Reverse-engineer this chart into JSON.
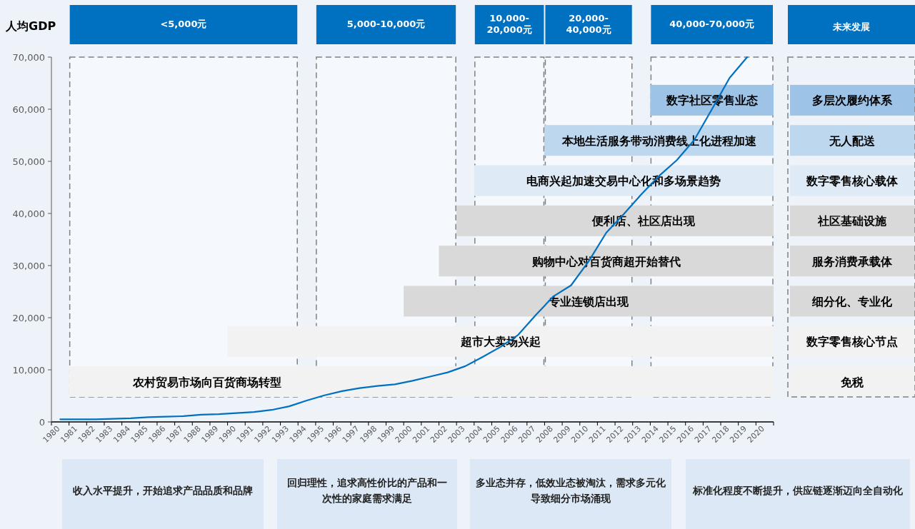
{
  "chart_data": {
    "type": "line",
    "ylabel": "人均GDP",
    "categories": [
      "1980",
      "1981",
      "1982",
      "1983",
      "1984",
      "1985",
      "1986",
      "1987",
      "1988",
      "1989",
      "1990",
      "1991",
      "1992",
      "1993",
      "1994",
      "1995",
      "1996",
      "1997",
      "1998",
      "1999",
      "2000",
      "2001",
      "2002",
      "2003",
      "2004",
      "2005",
      "2006",
      "2007",
      "2008",
      "2009",
      "2010",
      "2011",
      "2012",
      "2013",
      "2014",
      "2015",
      "2016",
      "2017",
      "2018",
      "2019",
      "2020"
    ],
    "series": [
      {
        "color": "#0070c0",
        "values": [
          500,
          500,
          500,
          600,
          700,
          900,
          1000,
          1100,
          1400,
          1500,
          1700,
          1900,
          2300,
          3000,
          4100,
          5100,
          5900,
          6500,
          6900,
          7200,
          7900,
          8700,
          9500,
          10700,
          12500,
          14400,
          16700,
          20500,
          24100,
          26200,
          30800,
          36300,
          39900,
          43700,
          47200,
          50200,
          54100,
          60000,
          66000,
          70000,
          null
        ]
      }
    ],
    "ylim": [
      0,
      70000
    ],
    "yticks": [
      0,
      {
        "value": 10000,
        "label": "10,000"
      },
      {
        "value": 20000,
        "label": "20,000"
      },
      {
        "value": 30000,
        "label": "30,000"
      },
      {
        "value": 40000,
        "label": "40,000"
      },
      {
        "value": 50000,
        "label": "50,000"
      },
      {
        "value": 60000,
        "label": "60,000"
      },
      {
        "value": 70000,
        "label": "70,000"
      }
    ],
    "grid": false,
    "marker": "none",
    "line_style": "solid",
    "bands": [
      {
        "axis": "x",
        "from": "1981",
        "to": "1993",
        "label": "<5,000元",
        "color": "#f5f8fd"
      },
      {
        "axis": "x",
        "from": "1995",
        "to": "2002",
        "label": "5,000-10,000元",
        "color": "#f5f8fd"
      },
      {
        "axis": "x",
        "from": "2004",
        "to": "2007",
        "label": "10,000-\n20,000元",
        "color": "#f5f8fd"
      },
      {
        "axis": "x",
        "from": "2008",
        "to": "2012",
        "label": "20,000-\n40,000元",
        "color": "#f5f8fd"
      },
      {
        "axis": "x",
        "from": "2014",
        "to": "2020",
        "label": "40,000-70,000元",
        "color": "#f5f8fd"
      },
      {
        "axis": "x",
        "from": "2014",
        "to": "2020",
        "label": "数字社区零售业态",
        "color": "#9dc3e6"
      },
      {
        "axis": "x",
        "from": "2008",
        "to": "2020",
        "label": "本地生活服务带动消费线上化进程加速",
        "color": "#bdd7ee"
      },
      {
        "axis": "x",
        "from": "2004",
        "to": "2020",
        "label": "电商兴起加速交易中心化和多场景趋势",
        "color": "#deeaf6"
      },
      {
        "axis": "x",
        "from": "2003",
        "to": "2020",
        "label": "便利店、社区店出现",
        "color": "#d9d9d9"
      },
      {
        "axis": "x",
        "from": "2002",
        "to": "2020",
        "label": "购物中心对百货商超开始替代",
        "color": "#d9d9d9"
      },
      {
        "axis": "x",
        "from": "2000",
        "to": "2020",
        "label": "专业连锁店出现",
        "color": "#d9d9d9"
      },
      {
        "axis": "x",
        "from": "1990",
        "to": "2020",
        "label": "超市大卖场兴起",
        "color": "#f2f2f2"
      },
      {
        "axis": "x",
        "from": "1981",
        "to": "2020",
        "label": "农村贸易市场向百货商场转型",
        "color": "#f2f2f2"
      }
    ],
    "annotations": [
      "未来发展",
      "多层次履约体系",
      "无人配送",
      "数字零售核心载体",
      "社区基础设施",
      "服务消费承载体",
      "细分化、专业化",
      "数字零售核心节点",
      "免税",
      "收入水平提升，开始追求产品品质和品牌",
      "回归理性，追求高性价比的产品和一次性的家庭需求满足",
      "多业态并存，低效业态被淘汰，需求多元化导致细分市场涌现",
      "标准化程度不断提升，供应链逐渐迈向全自动化"
    ]
  }
}
